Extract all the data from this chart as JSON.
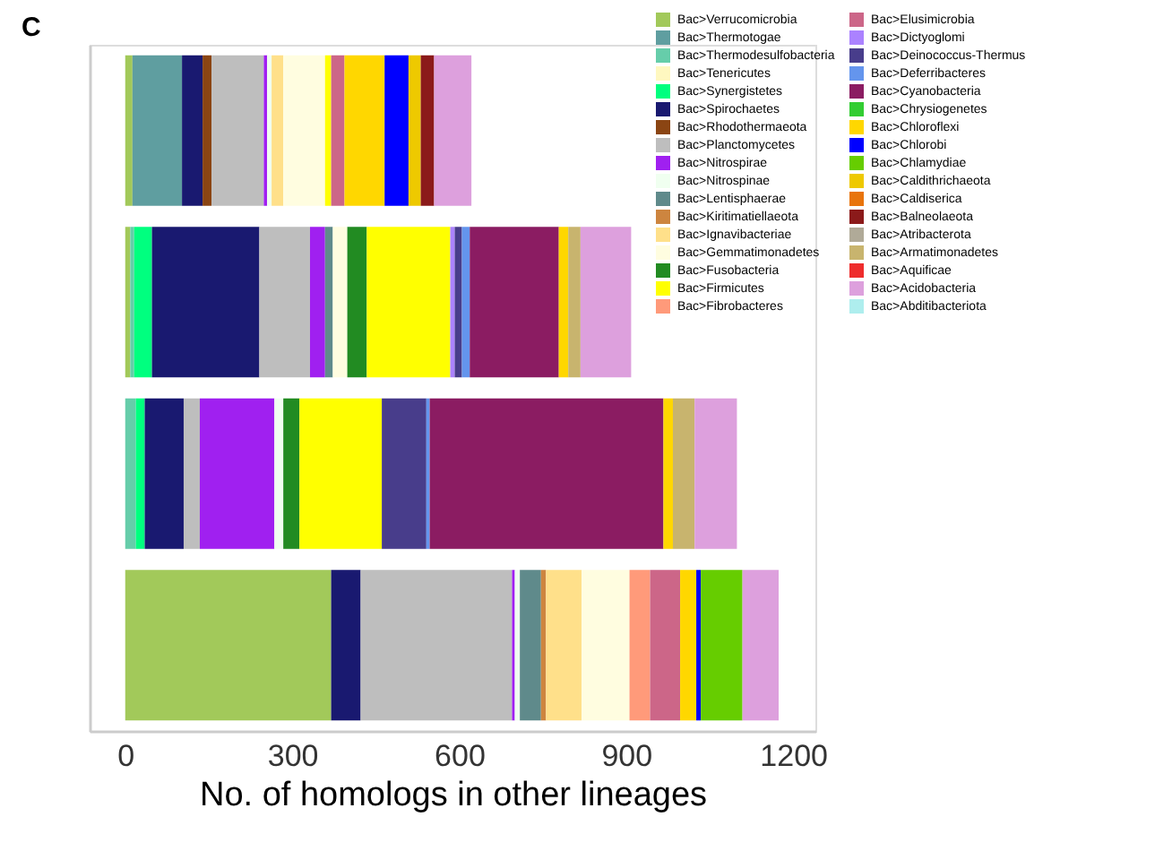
{
  "chart_data": {
    "type": "bar",
    "orientation": "horizontal",
    "stacked": true,
    "xlabel": "No. of homologs in other lineages",
    "annotations": [
      "C"
    ],
    "categories": [
      null,
      null,
      null,
      null
    ],
    "xlim": [
      -64,
      1240
    ],
    "xticks": [
      0,
      300,
      600,
      900,
      1200
    ],
    "tick_labels": "x",
    "grid": false,
    "legend": "top right",
    "series": [
      {
        "name": "Bac>Verrucomicrobia",
        "color": "#a2c95a",
        "values": [
          13,
          9,
          null,
          370
        ]
      },
      {
        "name": "Bac>Thermotogae",
        "color": "#5f9ea0",
        "values": [
          89,
          null,
          null,
          null
        ]
      },
      {
        "name": "Bac>Thermodesulfobacteria",
        "color": "#66cdaa",
        "values": [
          null,
          7,
          19,
          null
        ]
      },
      {
        "name": "Bac>Tenericutes",
        "color": "#fff8c0",
        "values": [
          null,
          null,
          null,
          null
        ]
      },
      {
        "name": "Bac>Synergistetes",
        "color": "#00ff7f",
        "values": [
          null,
          32,
          16,
          null
        ]
      },
      {
        "name": "Bac>Spirochaetes",
        "color": "#191970",
        "values": [
          37,
          193,
          70,
          53
        ]
      },
      {
        "name": "Bac>Rhodothermaeota",
        "color": "#8b4513",
        "values": [
          16,
          null,
          null,
          null
        ]
      },
      {
        "name": "Bac>Planctomycetes",
        "color": "#bebebe",
        "values": [
          94,
          91,
          29,
          272
        ]
      },
      {
        "name": "Bac>Nitrospirae",
        "color": "#a020f0",
        "values": [
          6,
          27,
          134,
          5
        ]
      },
      {
        "name": "Bac>Nitrospinae",
        "color": "#f0fff0",
        "values": [
          8,
          null,
          16,
          9
        ]
      },
      {
        "name": "Bac>Lentisphaerae",
        "color": "#5f8a8b",
        "values": [
          null,
          14,
          null,
          38
        ]
      },
      {
        "name": "Bac>Kiritimatiellaeota",
        "color": "#cd853f",
        "values": [
          null,
          null,
          null,
          9
        ]
      },
      {
        "name": "Bac>Ignavibacteriae",
        "color": "#ffe08a",
        "values": [
          21,
          null,
          null,
          64
        ]
      },
      {
        "name": "Bac>Gemmatimonadetes",
        "color": "#fffde0",
        "values": [
          75,
          26,
          null,
          86
        ]
      },
      {
        "name": "Bac>Fusobacteria",
        "color": "#228b22",
        "values": [
          null,
          35,
          29,
          null
        ]
      },
      {
        "name": "Bac>Firmicutes",
        "color": "#ffff00",
        "values": [
          11,
          150,
          148,
          null
        ]
      },
      {
        "name": "Bac>Fibrobacteres",
        "color": "#ff9a7a",
        "values": [
          null,
          null,
          null,
          37
        ]
      },
      {
        "name": "Bac>Elusimicrobia",
        "color": "#cc6688",
        "values": [
          24,
          null,
          null,
          54
        ]
      },
      {
        "name": "Bac>Dictyoglomi",
        "color": "#ab82ff",
        "values": [
          null,
          8,
          null,
          null
        ]
      },
      {
        "name": "Bac>Deinococcus-Thermus",
        "color": "#483d8b",
        "values": [
          null,
          13,
          80,
          null
        ]
      },
      {
        "name": "Bac>Deferribacteres",
        "color": "#6495ed",
        "values": [
          null,
          14,
          6,
          null
        ]
      },
      {
        "name": "Bac>Cyanobacteria",
        "color": "#8b1c62",
        "values": [
          null,
          160,
          420,
          null
        ]
      },
      {
        "name": "Bac>Chrysiogenetes",
        "color": "#32cd32",
        "values": [
          null,
          null,
          null,
          null
        ]
      },
      {
        "name": "Bac>Chloroflexi",
        "color": "#ffd700",
        "values": [
          72,
          17,
          17,
          29
        ]
      },
      {
        "name": "Bac>Chlorobi",
        "color": "#0000ff",
        "values": [
          43,
          null,
          null,
          8
        ]
      },
      {
        "name": "Bac>Chlamydiae",
        "color": "#66cd00",
        "values": [
          null,
          null,
          null,
          75
        ]
      },
      {
        "name": "Bac>Caldithrichaeota",
        "color": "#eec900",
        "values": [
          22,
          null,
          null,
          null
        ]
      },
      {
        "name": "Bac>Caldiserica",
        "color": "#e8740c",
        "values": [
          null,
          null,
          null,
          null
        ]
      },
      {
        "name": "Bac>Balneolaeota",
        "color": "#8b1a1a",
        "values": [
          24,
          null,
          null,
          null
        ]
      },
      {
        "name": "Bac>Atribacterota",
        "color": "#b0aa98",
        "values": [
          null,
          null,
          null,
          null
        ]
      },
      {
        "name": "Bac>Armatimonadetes",
        "color": "#c8b46e",
        "values": [
          null,
          22,
          39,
          null
        ]
      },
      {
        "name": "Bac>Aquificae",
        "color": "#ee2c2c",
        "values": [
          null,
          null,
          null,
          null
        ]
      },
      {
        "name": "Bac>Acidobacteria",
        "color": "#dda0dd",
        "values": [
          67,
          91,
          76,
          65
        ]
      },
      {
        "name": "Bac>Abditibacteriota",
        "color": "#aeeeee",
        "values": [
          null,
          null,
          null,
          null
        ]
      }
    ]
  }
}
